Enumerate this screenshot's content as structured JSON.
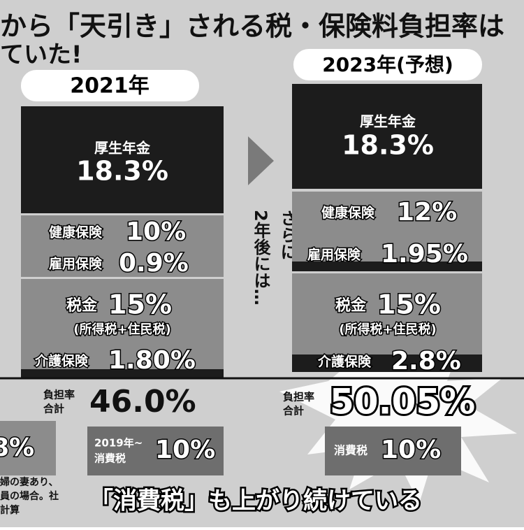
{
  "title": {
    "line1": "から「天引き」される税・保険料負担率は",
    "line2": "ていた!"
  },
  "left": {
    "header": "2021年",
    "pension": {
      "label": "厚生年金",
      "value": "18.3%"
    },
    "health": {
      "label": "健康保険",
      "value": "10%"
    },
    "employment": {
      "label": "雇用保険",
      "value": "0.9%"
    },
    "tax": {
      "label": "税金",
      "value": "15%",
      "note": "(所得税+住民税)"
    },
    "care": {
      "label": "介護保険",
      "value": "1.80%"
    },
    "total": {
      "label1": "負担率",
      "label2": "合計",
      "value": "46.0%"
    }
  },
  "middle": {
    "line1": "さらに",
    "line2": "2年後には…"
  },
  "right": {
    "header": "2023年(予想)",
    "pension": {
      "label": "厚生年金",
      "value": "18.3%"
    },
    "health": {
      "label": "健康保険",
      "value": "12%"
    },
    "employment": {
      "label": "雇用保険",
      "value": "1.95%"
    },
    "tax": {
      "label": "税金",
      "value": "15%",
      "note": "(所得税+住民税)"
    },
    "care": {
      "label": "介護保険",
      "value": "2.8%"
    },
    "total": {
      "label1": "負担率",
      "label2": "合計",
      "value": "50.05%"
    }
  },
  "consumption": {
    "partial": "8%",
    "left_label1": "2019年~",
    "left_label2": "消費税",
    "left_value": "10%",
    "right_label": "消費税",
    "right_value": "10%"
  },
  "footnote": [
    "婦の妻あり、",
    "員の場合。社",
    "計算"
  ],
  "banner": "「消費税」も上がり続けている"
}
